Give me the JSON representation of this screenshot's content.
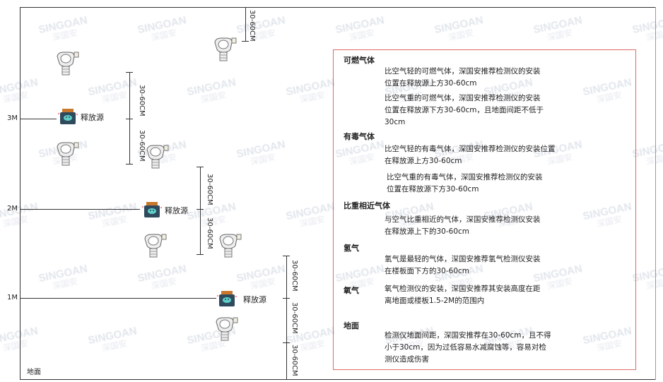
{
  "watermark": {
    "brand": "SINGOAN",
    "cn": "深国安"
  },
  "heights": [
    "3M",
    "2M",
    "1M"
  ],
  "ground_label": "地面",
  "source_label": "释放源",
  "dimension_label": "30-60CM",
  "notes": [
    {
      "title": "可燃气体",
      "paras": [
        [
          "比空气轻的可燃气体，深国安推荐检测仪的安装",
          "位置在释放源上方30-60cm"
        ],
        [
          "比空气重的可燃气体，深国安推荐检测仪的安装",
          "位置在释放源下方30-60cm，且地面间距不低于",
          "30cm"
        ]
      ]
    },
    {
      "title": "有毒气体",
      "paras": [
        [
          "比空气轻的有毒气体，深国安推荐检测仪的安装位置",
          "在释放源上方30-60cm"
        ],
        [
          "比空气重的有毒气体，深国安推荐检测仪的安装",
          "位置在释放源下方30-60cm"
        ]
      ]
    },
    {
      "title": "比重相近气体",
      "paras": [
        [
          "与空气比重相近的气体，深国安推荐检测仪安装",
          "在释放源上下的30-60cm"
        ]
      ]
    },
    {
      "title": "氢气",
      "paras": [
        [
          "氢气是最轻的气体，深国安推荐氢气检测仪安装",
          "在楼板面下方的30-60cm"
        ]
      ]
    },
    {
      "title": "氧气",
      "paras": [
        [
          "氧气检测仪的安装，深国安推荐其安装高度在距",
          "离地面或楼板1.5-2M的范围内"
        ]
      ]
    },
    {
      "title": "地面",
      "paras": [
        [
          "检测仪地面间距，深国安推荐在30-60cm，且不得",
          "小于30cm，因为过低容易水减腐蚀等，容易对检",
          "测仪造成伤害"
        ]
      ]
    }
  ],
  "colors": {
    "box_border": "#e06a6a",
    "source_body": "#2f4a5c",
    "source_cap": "#c9772c",
    "source_glyph": "#5fd0c8"
  }
}
